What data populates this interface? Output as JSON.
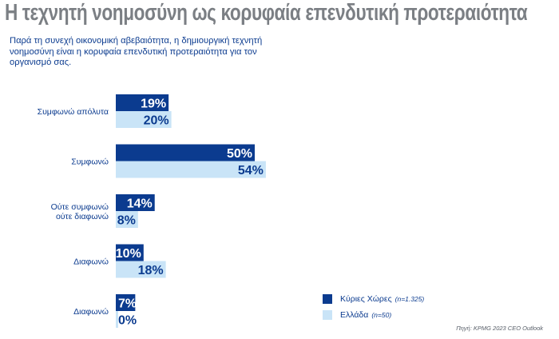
{
  "title": "Η τεχνητή νοημοσύνη ως κορυφαία επενδυτική προτεραιότητα",
  "subtitle": "Παρά τη συνεχή οικονομική αβεβαιότητα, η δημιουργική τεχνητή νοημοσύνη είναι η κορυφαία επενδυτική προτεραιότητα για τον οργανισμό σας.",
  "source": "Πηγή: KPMG 2023 CEO Outlook",
  "colors": {
    "dark": "#0b3b8f",
    "light": "#c9e4f7",
    "title": "#7b7f84"
  },
  "legend": [
    {
      "name": "Κύριες Χώρες",
      "n": "(n=1.325)"
    },
    {
      "name": "Ελλάδα",
      "n": "(n=50)"
    }
  ],
  "chart_data": {
    "type": "bar",
    "orientation": "horizontal",
    "categories": [
      [
        "Συμφωνώ απόλυτα"
      ],
      [
        "Συμφωνώ"
      ],
      [
        "Ούτε συμφωνώ",
        "ούτε διαφωνώ"
      ],
      [
        "Διαφωνώ"
      ],
      [
        "Διαφωνώ"
      ]
    ],
    "series": [
      {
        "name": "Κύριες Χώρες",
        "values": [
          19,
          50,
          14,
          10,
          7
        ],
        "labels": [
          "19%",
          "50%",
          "14%",
          "10%",
          "7%"
        ]
      },
      {
        "name": "Ελλάδα",
        "values": [
          20,
          54,
          8,
          18,
          0
        ],
        "labels": [
          "20%",
          "54%",
          "8%",
          "18%",
          "0%"
        ]
      }
    ],
    "value_unit": "%",
    "grid": false,
    "legend_position": "bottom-right"
  }
}
